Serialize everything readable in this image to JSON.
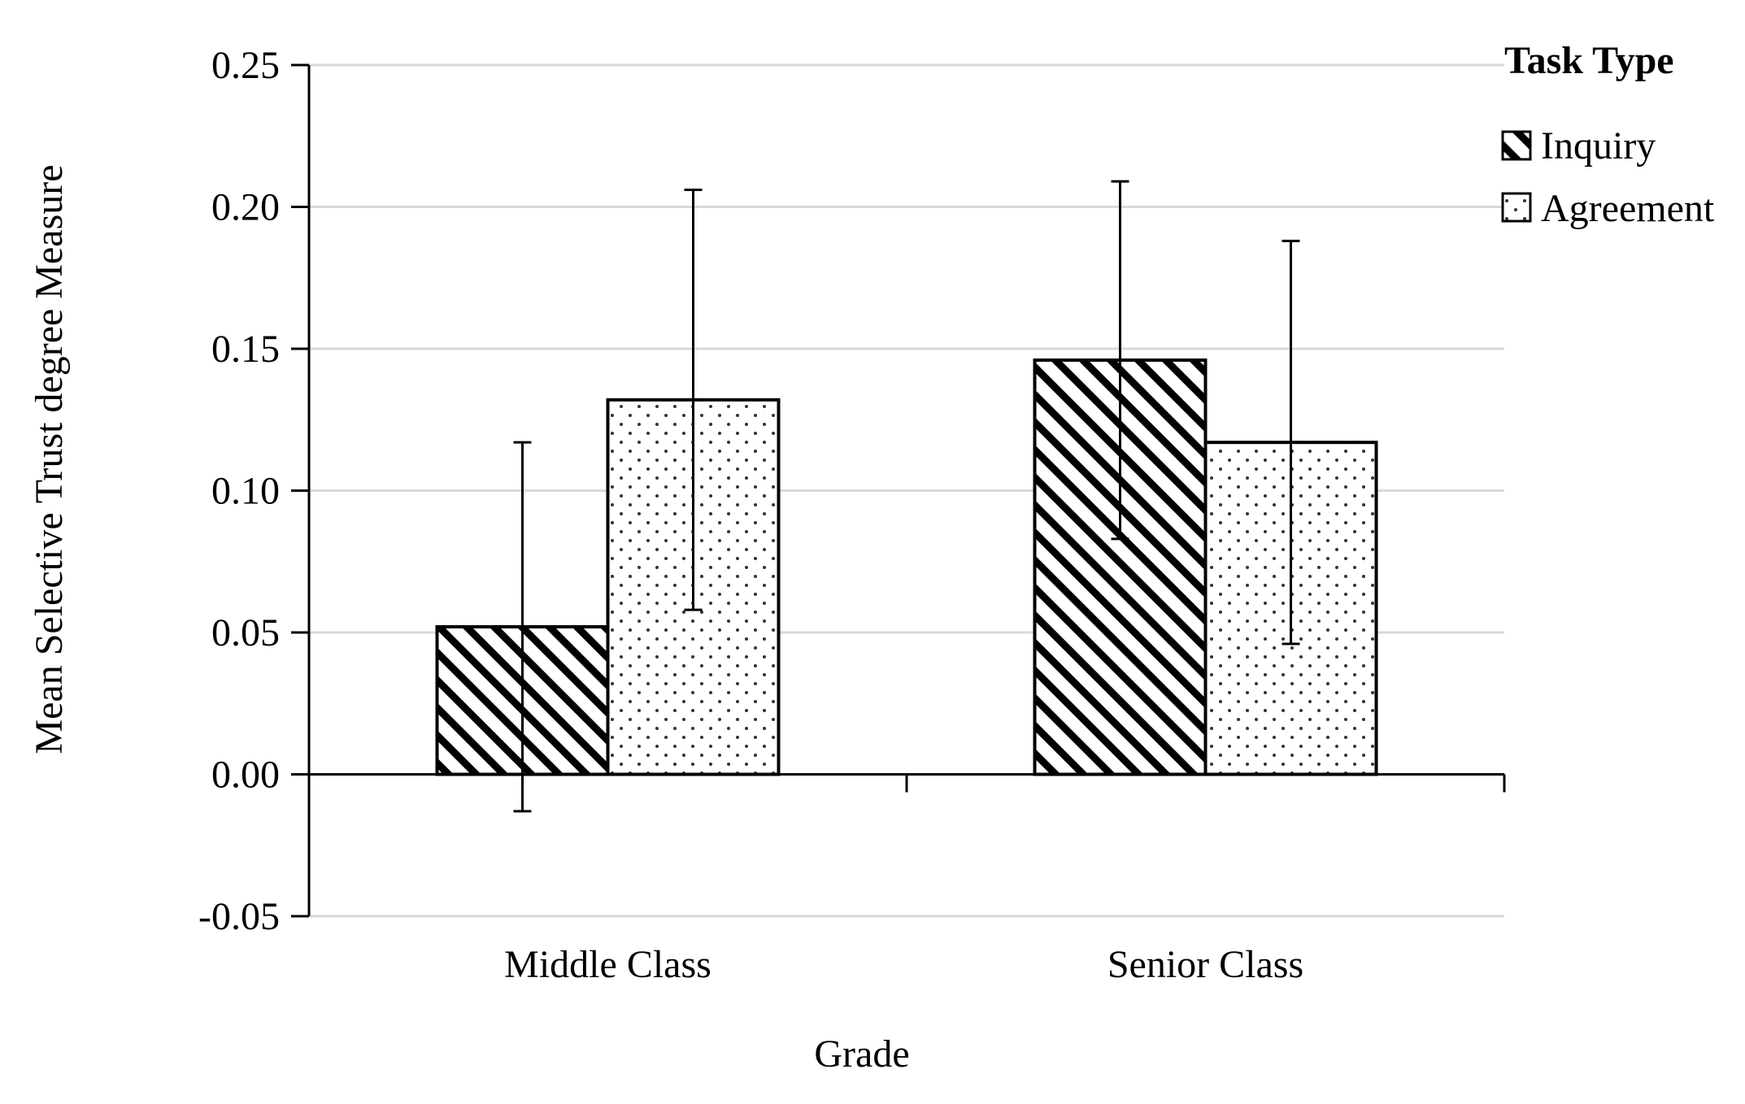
{
  "chart_data": {
    "type": "bar",
    "title": "",
    "xlabel": "Grade",
    "ylabel": "Mean Selective Trust degree Measure",
    "categories": [
      "Middle Class",
      "Senior Class"
    ],
    "series": [
      {
        "name": "Inquiry",
        "pattern": "diagonal-hatch",
        "values": [
          0.052,
          0.146
        ],
        "error_low": [
          -0.013,
          0.083
        ],
        "error_high": [
          0.117,
          0.209
        ]
      },
      {
        "name": "Agreement",
        "pattern": "dots",
        "values": [
          0.132,
          0.117
        ],
        "error_low": [
          0.058,
          0.046
        ],
        "error_high": [
          0.206,
          0.188
        ]
      }
    ],
    "ylim": [
      -0.05,
      0.25
    ],
    "yticks": [
      "-0.05",
      "0.00",
      "0.05",
      "0.10",
      "0.15",
      "0.20",
      "0.25"
    ],
    "ytick_values": [
      -0.05,
      0.0,
      0.05,
      0.1,
      0.15,
      0.2,
      0.25
    ],
    "grid": true,
    "legend_title": "Task Type",
    "legend_position": "top-right",
    "colors": {
      "bar_fill": "#ffffff",
      "bar_stroke": "#000000",
      "grid": "#d9d9d9",
      "axis": "#000000"
    }
  }
}
